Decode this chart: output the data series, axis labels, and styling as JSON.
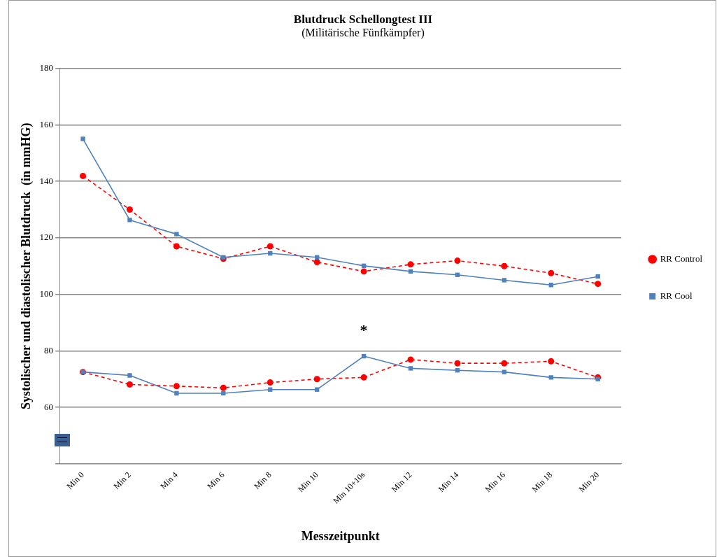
{
  "chart_data": {
    "type": "line",
    "title": "Blutdruck Schellongtest III",
    "subtitle": "(Militärische Fünfkämpfer)",
    "xlabel": "Messzeitpunkt",
    "ylabel": "Systolischer und diastolischer Blutdruck  (in mmHG)",
    "categories": [
      "Min 0",
      "Min 2",
      "Min 4",
      "Min 6",
      "Min 8",
      "Min 10",
      "Min 10+10s",
      "Min 12",
      "Min 14",
      "Min 16",
      "Min 18",
      "Min 20"
    ],
    "series": [
      {
        "name": "RR Control",
        "color": "#ff0000",
        "marker": "circle",
        "line_style": "dashed",
        "values": [
          141.9,
          130,
          117,
          112.6,
          117,
          111.4,
          108.1,
          110.6,
          111.9,
          110,
          107.5,
          103.7
        ]
      },
      {
        "name": "RR Cool",
        "color": "#4f81bd",
        "marker": "square",
        "line_style": "solid",
        "values": [
          155,
          126.3,
          121.3,
          113.1,
          114.5,
          113.1,
          110.1,
          108.1,
          106.9,
          105,
          103.3,
          106.3
        ]
      },
      {
        "color": "#ff0000",
        "marker": "circle",
        "line_style": "dashed",
        "values": [
          72.5,
          68.1,
          67.5,
          66.9,
          68.8,
          70,
          70.6,
          76.9,
          75.6,
          75.6,
          76.3,
          70.6
        ]
      },
      {
        "color": "#4f81bd",
        "marker": "square",
        "line_style": "solid",
        "values": [
          72.5,
          71.3,
          65,
          65,
          66.3,
          66.3,
          78.1,
          73.8,
          73.1,
          72.5,
          70.6,
          70
        ]
      }
    ],
    "ylim": [
      40,
      180
    ],
    "yticks": [
      {
        "value": 40,
        "label": null
      },
      60,
      80,
      100,
      120,
      140,
      160,
      180
    ],
    "grid": "y",
    "legend": "right",
    "annotations": [
      {
        "text": "*",
        "x": "Min 10+10s",
        "y": 78.1
      }
    ]
  }
}
